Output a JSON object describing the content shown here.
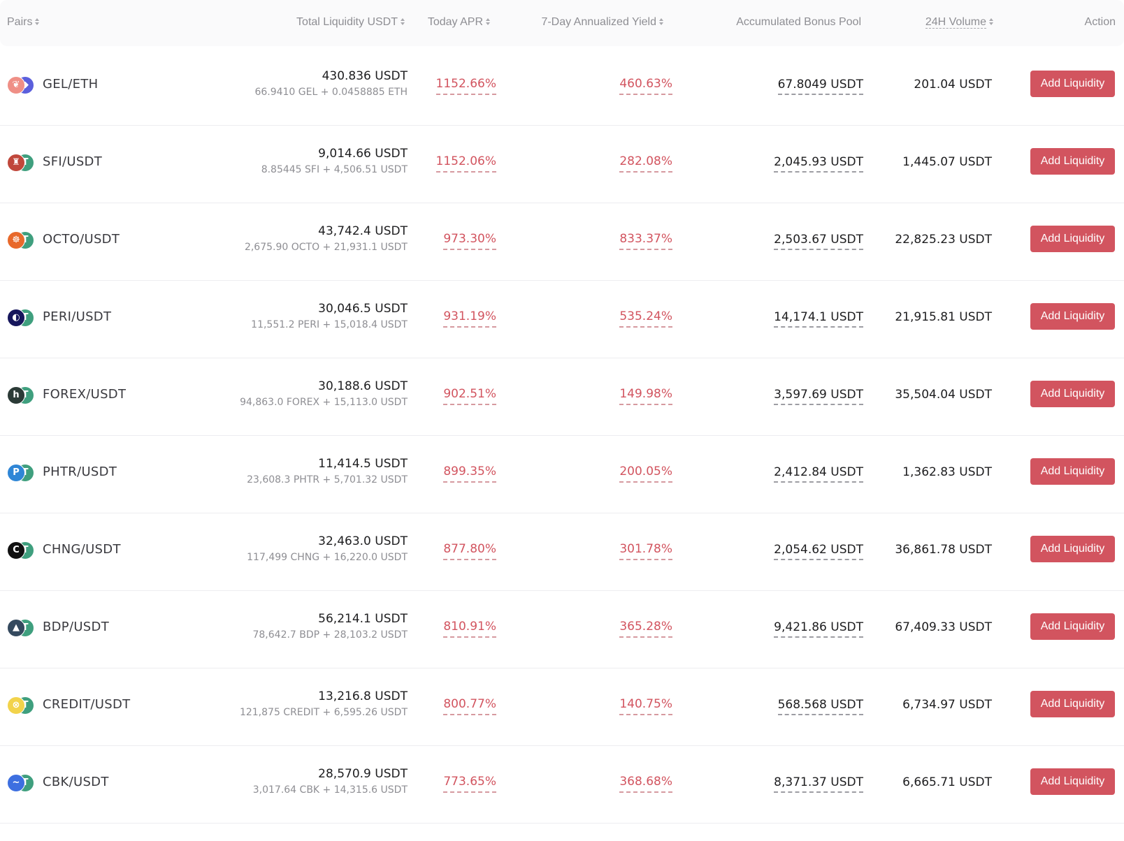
{
  "header": {
    "pairs": "Pairs",
    "total_liquidity": "Total Liquidity USDT",
    "today_apr": "Today APR",
    "seven_day_yield": "7-Day Annualized Yield",
    "bonus_pool": "Accumulated Bonus Pool",
    "volume_24h": "24H Volume",
    "action": "Action"
  },
  "colors": {
    "accent": "#d2545f",
    "header_text": "#8e8e93",
    "body_text": "#1d1d1f"
  },
  "rows": [
    {
      "pair": "GEL/ETH",
      "token_a_icon": "gel-token-icon",
      "token_a_color": "#ef8f86",
      "token_a_glyph": "❦",
      "token_b_icon": "eth-token-icon",
      "token_b_color": "#5b5fdc",
      "token_b_glyph": "◆",
      "total": "430.836 USDT",
      "detail": "66.9410 GEL + 0.0458885 ETH",
      "apr": "1152.66%",
      "yield": "460.63%",
      "bonus": "67.8049 USDT",
      "volume": "201.04 USDT",
      "action": "Add Liquidity"
    },
    {
      "pair": "SFI/USDT",
      "token_a_icon": "sfi-token-icon",
      "token_a_color": "#c0473b",
      "token_a_glyph": "♜",
      "token_b_icon": "usdt-token-icon",
      "token_b_color": "#3f9f7e",
      "token_b_glyph": "T",
      "total": "9,014.66 USDT",
      "detail": "8.85445 SFI + 4,506.51 USDT",
      "apr": "1152.06%",
      "yield": "282.08%",
      "bonus": "2,045.93 USDT",
      "volume": "1,445.07 USDT",
      "action": "Add Liquidity"
    },
    {
      "pair": "OCTO/USDT",
      "token_a_icon": "octo-token-icon",
      "token_a_color": "#e8692b",
      "token_a_glyph": "☸",
      "token_b_icon": "usdt-token-icon",
      "token_b_color": "#3f9f7e",
      "token_b_glyph": "T",
      "total": "43,742.4 USDT",
      "detail": "2,675.90 OCTO + 21,931.1 USDT",
      "apr": "973.30%",
      "yield": "833.37%",
      "bonus": "2,503.67 USDT",
      "volume": "22,825.23 USDT",
      "action": "Add Liquidity"
    },
    {
      "pair": "PERI/USDT",
      "token_a_icon": "peri-token-icon",
      "token_a_color": "#16165c",
      "token_a_glyph": "◐",
      "token_b_icon": "usdt-token-icon",
      "token_b_color": "#3f9f7e",
      "token_b_glyph": "T",
      "total": "30,046.5 USDT",
      "detail": "11,551.2 PERI + 15,018.4 USDT",
      "apr": "931.19%",
      "yield": "535.24%",
      "bonus": "14,174.1 USDT",
      "volume": "21,915.81 USDT",
      "action": "Add Liquidity"
    },
    {
      "pair": "FOREX/USDT",
      "token_a_icon": "forex-token-icon",
      "token_a_color": "#2b3a36",
      "token_a_glyph": "h",
      "token_b_icon": "usdt-token-icon",
      "token_b_color": "#3f9f7e",
      "token_b_glyph": "T",
      "total": "30,188.6 USDT",
      "detail": "94,863.0 FOREX + 15,113.0 USDT",
      "apr": "902.51%",
      "yield": "149.98%",
      "bonus": "3,597.69 USDT",
      "volume": "35,504.04 USDT",
      "action": "Add Liquidity"
    },
    {
      "pair": "PHTR/USDT",
      "token_a_icon": "phtr-token-icon",
      "token_a_color": "#2f86d6",
      "token_a_glyph": "P",
      "token_b_icon": "usdt-token-icon",
      "token_b_color": "#3f9f7e",
      "token_b_glyph": "T",
      "total": "11,414.5 USDT",
      "detail": "23,608.3 PHTR + 5,701.32 USDT",
      "apr": "899.35%",
      "yield": "200.05%",
      "bonus": "2,412.84 USDT",
      "volume": "1,362.83 USDT",
      "action": "Add Liquidity"
    },
    {
      "pair": "CHNG/USDT",
      "token_a_icon": "chng-token-icon",
      "token_a_color": "#111111",
      "token_a_glyph": "C",
      "token_b_icon": "usdt-token-icon",
      "token_b_color": "#3f9f7e",
      "token_b_glyph": "T",
      "total": "32,463.0 USDT",
      "detail": "117,499 CHNG + 16,220.0 USDT",
      "apr": "877.80%",
      "yield": "301.78%",
      "bonus": "2,054.62 USDT",
      "volume": "36,861.78 USDT",
      "action": "Add Liquidity"
    },
    {
      "pair": "BDP/USDT",
      "token_a_icon": "bdp-token-icon",
      "token_a_color": "#34495e",
      "token_a_glyph": "▲",
      "token_b_icon": "usdt-token-icon",
      "token_b_color": "#3f9f7e",
      "token_b_glyph": "T",
      "total": "56,214.1 USDT",
      "detail": "78,642.7 BDP + 28,103.2 USDT",
      "apr": "810.91%",
      "yield": "365.28%",
      "bonus": "9,421.86 USDT",
      "volume": "67,409.33 USDT",
      "action": "Add Liquidity"
    },
    {
      "pair": "CREDIT/USDT",
      "token_a_icon": "credit-token-icon",
      "token_a_color": "#f2d34b",
      "token_a_glyph": "⊗",
      "token_b_icon": "usdt-token-icon",
      "token_b_color": "#3f9f7e",
      "token_b_glyph": "T",
      "total": "13,216.8 USDT",
      "detail": "121,875 CREDIT + 6,595.26 USDT",
      "apr": "800.77%",
      "yield": "140.75%",
      "bonus": "568.568 USDT",
      "volume": "6,734.97 USDT",
      "action": "Add Liquidity"
    },
    {
      "pair": "CBK/USDT",
      "token_a_icon": "cbk-token-icon",
      "token_a_color": "#3d6fe0",
      "token_a_glyph": "~",
      "token_b_icon": "usdt-token-icon",
      "token_b_color": "#3f9f7e",
      "token_b_glyph": "T",
      "total": "28,570.9 USDT",
      "detail": "3,017.64 CBK + 14,315.6 USDT",
      "apr": "773.65%",
      "yield": "368.68%",
      "bonus": "8,371.37 USDT",
      "volume": "6,665.71 USDT",
      "action": "Add Liquidity"
    }
  ]
}
